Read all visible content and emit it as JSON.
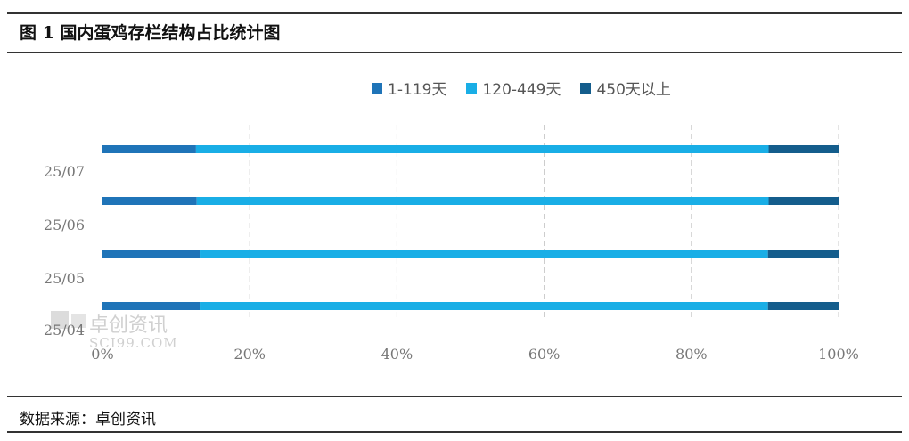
{
  "header": {
    "title": "图 1  国内蛋鸡存栏结构占比统计图"
  },
  "footer": {
    "source": "数据来源：卓创资讯"
  },
  "watermark": {
    "text": "卓创资讯",
    "sub": "SCI99.COM"
  },
  "chart_data": {
    "type": "bar",
    "orientation": "horizontal",
    "stacked": "percent",
    "categories": [
      "25/07",
      "25/06",
      "25/05",
      "25/04"
    ],
    "series": [
      {
        "name": "1-119天",
        "color": "#1f74b8",
        "values": [
          12.7,
          12.8,
          13.2,
          13.2
        ]
      },
      {
        "name": "120-449天",
        "color": "#19aee6",
        "values": [
          77.8,
          77.7,
          77.2,
          77.2
        ]
      },
      {
        "name": "450天以上",
        "color": "#145d8c",
        "values": [
          9.5,
          9.5,
          9.6,
          9.6
        ]
      }
    ],
    "x_ticks": [
      "0%",
      "20%",
      "40%",
      "60%",
      "80%",
      "100%"
    ],
    "xlim": [
      0,
      100
    ],
    "grid": "vertical dashed",
    "legend": "top-center"
  }
}
